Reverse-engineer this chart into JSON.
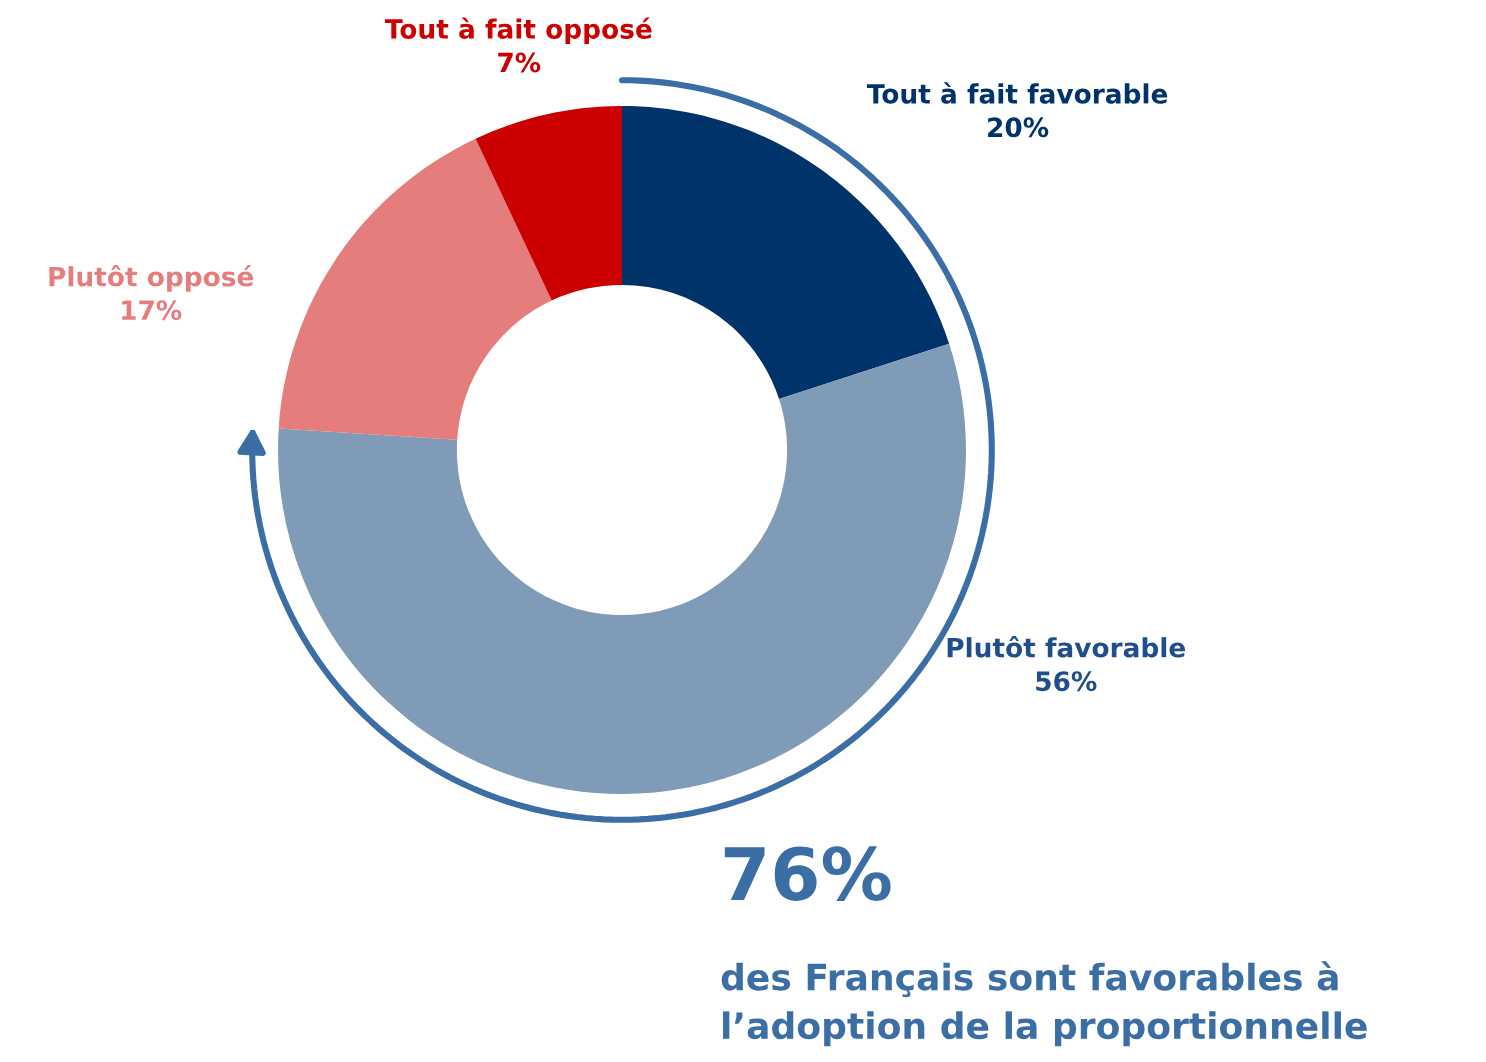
{
  "chart_data": {
    "type": "donut",
    "categories": [
      "Tout à fait favorable",
      "Plutôt favorable",
      "Plutôt opposé",
      "Tout à fait opposé"
    ],
    "values": [
      20,
      56,
      17,
      7
    ],
    "colors": [
      "#00336a",
      "#7f9bb7",
      "#e57d7d",
      "#cc0000"
    ],
    "value_labels": [
      "20%",
      "56%",
      "17%",
      "7%"
    ],
    "annotations": [
      "76%",
      "des Français sont favorables à\nl’adoption de la proportionnelle"
    ],
    "legend": false
  }
}
